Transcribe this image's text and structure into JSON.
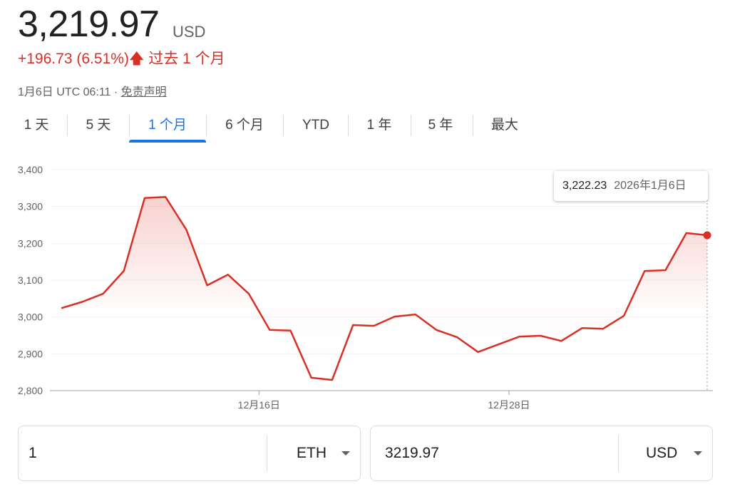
{
  "header": {
    "price": "3,219.97",
    "currency": "USD",
    "change": "+196.73 (6.51%)",
    "change_arrow": "arrow-up-icon",
    "change_period": "过去 1 个月",
    "timestamp": "1月6日 UTC 06:11 · ",
    "disclaimer": "免责声明"
  },
  "tabs": [
    {
      "label": "1 天"
    },
    {
      "label": "5 天"
    },
    {
      "label": "1 个月",
      "active": true
    },
    {
      "label": "6 个月"
    },
    {
      "label": "YTD"
    },
    {
      "label": "1 年"
    },
    {
      "label": "5 年"
    },
    {
      "label": "最大"
    }
  ],
  "colors": {
    "line": "#d93025",
    "accent": "#1a73e8",
    "down_up": "#d93025"
  },
  "tooltip": {
    "value": "3,222.23",
    "date": "2026年1月6日"
  },
  "converter": {
    "from_value": "1",
    "from_unit": "ETH",
    "to_value": "3219.97",
    "to_unit": "USD"
  },
  "chart_data": {
    "type": "area",
    "ylim": [
      2800,
      3400
    ],
    "yticks": [
      2800,
      2900,
      3000,
      3100,
      3200,
      3300,
      3400
    ],
    "ytick_labels": [
      "2,800",
      "2,900",
      "3,000",
      "3,100",
      "3,200",
      "3,300",
      "3,400"
    ],
    "xtick_labels": [
      {
        "date": "2025-12-16",
        "label": "12月16日"
      },
      {
        "date": "2025-12-28",
        "label": "12月28日"
      }
    ],
    "grid": true,
    "x": [
      "2025-12-06",
      "2025-12-07",
      "2025-12-08",
      "2025-12-09",
      "2025-12-10",
      "2025-12-11",
      "2025-12-12",
      "2025-12-13",
      "2025-12-14",
      "2025-12-15",
      "2025-12-16",
      "2025-12-17",
      "2025-12-18",
      "2025-12-19",
      "2025-12-20",
      "2025-12-21",
      "2025-12-22",
      "2025-12-23",
      "2025-12-24",
      "2025-12-25",
      "2025-12-26",
      "2025-12-27",
      "2025-12-28",
      "2025-12-29",
      "2025-12-30",
      "2025-12-31",
      "2026-01-01",
      "2026-01-02",
      "2026-01-03",
      "2026-01-04",
      "2026-01-05",
      "2026-01-06"
    ],
    "values": [
      3024,
      3041,
      3063,
      3125,
      3323,
      3326,
      3237,
      3086,
      3115,
      3063,
      2965,
      2963,
      2835,
      2829,
      2978,
      2976,
      3001,
      3007,
      2965,
      2945,
      2905,
      2926,
      2947,
      2949,
      2935,
      2970,
      2968,
      3003,
      3125,
      3127,
      3228,
      3222
    ]
  }
}
